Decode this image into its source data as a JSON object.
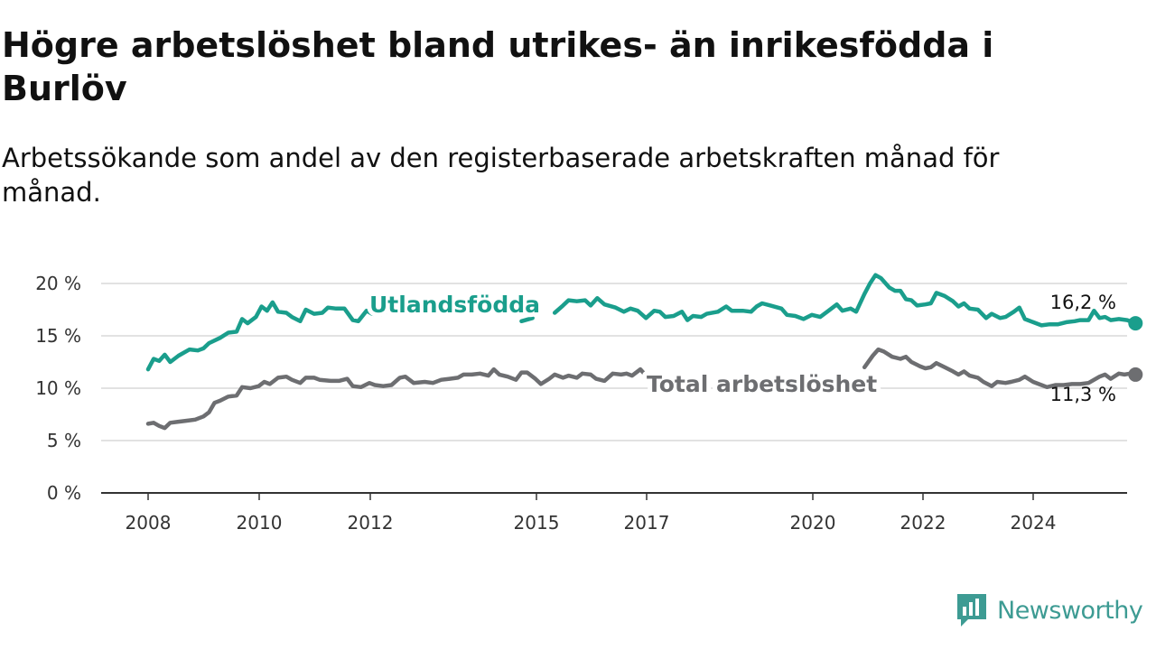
{
  "header": {
    "title": "Högre arbetslöshet bland utrikes- än inrikesfödda i Burlöv",
    "subtitle": "Arbetssökande som andel av den registerbaserade arbetskraften månad för månad."
  },
  "logo": {
    "text": "Newsworthy",
    "icon": "newsworthy-chart-icon"
  },
  "chart_data": {
    "type": "line",
    "title": "Högre arbetslöshet bland utrikes- än inrikesfödda i Burlöv",
    "subtitle": "Arbetssökande som andel av den registerbaserade arbetskraften månad för månad.",
    "xlabel": "",
    "ylabel": "",
    "xlim": [
      2008.0,
      2025.5
    ],
    "ylim": [
      0,
      20
    ],
    "yticks": [
      0,
      5,
      10,
      15,
      20
    ],
    "ytick_labels": [
      "0 %",
      "5 %",
      "10 %",
      "15 %",
      "20 %"
    ],
    "xticks": [
      2008,
      2010,
      2012,
      2015,
      2017,
      2020,
      2022,
      2024
    ],
    "xtick_labels": [
      "2008",
      "2010",
      "2012",
      "2015",
      "2017",
      "2020",
      "2022",
      "2024"
    ],
    "grid": true,
    "series": [
      {
        "name": "Utlandsfödda",
        "color": "#1a9e8c",
        "end_label": "16,2 %",
        "points": [
          [
            2008.0,
            11.8
          ],
          [
            2008.1,
            12.8
          ],
          [
            2008.2,
            12.6
          ],
          [
            2008.3,
            13.2
          ],
          [
            2008.4,
            12.5
          ],
          [
            2008.55,
            13.1
          ],
          [
            2008.75,
            13.7
          ],
          [
            2008.9,
            13.6
          ],
          [
            2009.0,
            13.8
          ],
          [
            2009.1,
            14.3
          ],
          [
            2009.3,
            14.8
          ],
          [
            2009.45,
            15.3
          ],
          [
            2009.6,
            15.4
          ],
          [
            2009.7,
            16.6
          ],
          [
            2009.8,
            16.2
          ],
          [
            2009.95,
            16.8
          ],
          [
            2010.05,
            17.8
          ],
          [
            2010.15,
            17.4
          ],
          [
            2010.25,
            18.2
          ],
          [
            2010.35,
            17.3
          ],
          [
            2010.5,
            17.2
          ],
          [
            2010.6,
            16.8
          ],
          [
            2010.75,
            16.4
          ],
          [
            2010.85,
            17.5
          ],
          [
            2011.0,
            17.1
          ],
          [
            2011.15,
            17.2
          ],
          [
            2011.25,
            17.7
          ],
          [
            2011.4,
            17.6
          ],
          [
            2011.55,
            17.6
          ],
          [
            2011.7,
            16.5
          ],
          [
            2011.8,
            16.4
          ],
          [
            2011.95,
            17.4
          ],
          [
            2012.05,
            17.1
          ],
          [
            2012.2,
            17.0
          ],
          [
            2012.3,
            17.3
          ],
          [
            2012.4,
            17.2
          ],
          [
            2012.48,
            18.1
          ]
        ],
        "extra_segments": [
          [
            [
              2014.75,
              16.4
            ],
            [
              2014.95,
              16.7
            ]
          ],
          [
            [
              2015.35,
              17.2
            ],
            [
              2015.5,
              17.9
            ],
            [
              2015.6,
              18.4
            ],
            [
              2015.75,
              18.3
            ],
            [
              2015.9,
              18.4
            ],
            [
              2016.0,
              17.9
            ],
            [
              2016.12,
              18.6
            ],
            [
              2016.25,
              18.0
            ],
            [
              2016.45,
              17.7
            ],
            [
              2016.6,
              17.3
            ],
            [
              2016.72,
              17.6
            ],
            [
              2016.85,
              17.4
            ],
            [
              2017.0,
              16.7
            ],
            [
              2017.15,
              17.4
            ],
            [
              2017.25,
              17.3
            ],
            [
              2017.35,
              16.8
            ],
            [
              2017.5,
              16.9
            ],
            [
              2017.65,
              17.3
            ],
            [
              2017.75,
              16.5
            ],
            [
              2017.85,
              16.9
            ],
            [
              2018.0,
              16.8
            ],
            [
              2018.1,
              17.1
            ],
            [
              2018.3,
              17.3
            ],
            [
              2018.45,
              17.8
            ],
            [
              2018.55,
              17.4
            ],
            [
              2018.75,
              17.4
            ],
            [
              2018.9,
              17.3
            ],
            [
              2019.0,
              17.8
            ],
            [
              2019.1,
              18.1
            ],
            [
              2019.25,
              17.9
            ],
            [
              2019.45,
              17.6
            ],
            [
              2019.55,
              17.0
            ],
            [
              2019.7,
              16.9
            ],
            [
              2019.85,
              16.6
            ],
            [
              2020.0,
              17.0
            ],
            [
              2020.15,
              16.8
            ],
            [
              2020.3,
              17.4
            ],
            [
              2020.45,
              18.0
            ],
            [
              2020.55,
              17.4
            ],
            [
              2020.7,
              17.6
            ],
            [
              2020.8,
              17.3
            ],
            [
              2020.95,
              19.0
            ],
            [
              2021.05,
              20.0
            ],
            [
              2021.15,
              20.8
            ],
            [
              2021.25,
              20.5
            ],
            [
              2021.4,
              19.6
            ],
            [
              2021.5,
              19.3
            ],
            [
              2021.6,
              19.3
            ],
            [
              2021.7,
              18.5
            ],
            [
              2021.8,
              18.4
            ],
            [
              2021.9,
              17.9
            ],
            [
              2022.05,
              18.0
            ],
            [
              2022.15,
              18.1
            ],
            [
              2022.25,
              19.1
            ],
            [
              2022.4,
              18.8
            ],
            [
              2022.55,
              18.3
            ],
            [
              2022.65,
              17.8
            ],
            [
              2022.75,
              18.1
            ],
            [
              2022.85,
              17.6
            ],
            [
              2023.0,
              17.5
            ],
            [
              2023.15,
              16.7
            ],
            [
              2023.25,
              17.1
            ],
            [
              2023.4,
              16.7
            ],
            [
              2023.5,
              16.8
            ],
            [
              2023.65,
              17.3
            ],
            [
              2023.75,
              17.7
            ],
            [
              2023.85,
              16.6
            ],
            [
              2024.0,
              16.3
            ],
            [
              2024.15,
              16.0
            ],
            [
              2024.3,
              16.1
            ],
            [
              2024.45,
              16.1
            ],
            [
              2024.6,
              16.3
            ],
            [
              2024.75,
              16.4
            ],
            [
              2024.85,
              16.5
            ],
            [
              2025.0,
              16.5
            ],
            [
              2025.1,
              17.4
            ],
            [
              2025.2,
              16.7
            ],
            [
              2025.3,
              16.8
            ],
            [
              2025.4,
              16.5
            ],
            [
              2025.55,
              16.6
            ],
            [
              2025.7,
              16.5
            ],
            [
              2025.85,
              16.2
            ]
          ]
        ]
      },
      {
        "name": "Total arbetslöshet",
        "color": "#6d6e71",
        "end_label": "11,3 %",
        "points": [
          [
            2008.0,
            6.6
          ],
          [
            2008.1,
            6.7
          ],
          [
            2008.2,
            6.4
          ],
          [
            2008.3,
            6.2
          ],
          [
            2008.4,
            6.7
          ],
          [
            2008.55,
            6.8
          ],
          [
            2008.7,
            6.9
          ],
          [
            2008.85,
            7.0
          ],
          [
            2009.0,
            7.3
          ],
          [
            2009.1,
            7.7
          ],
          [
            2009.2,
            8.6
          ],
          [
            2009.3,
            8.8
          ],
          [
            2009.45,
            9.2
          ],
          [
            2009.6,
            9.3
          ],
          [
            2009.7,
            10.1
          ],
          [
            2009.85,
            10.0
          ],
          [
            2010.0,
            10.2
          ],
          [
            2010.1,
            10.6
          ],
          [
            2010.2,
            10.4
          ],
          [
            2010.35,
            11.0
          ],
          [
            2010.5,
            11.1
          ],
          [
            2010.6,
            10.8
          ],
          [
            2010.75,
            10.5
          ],
          [
            2010.85,
            11.0
          ],
          [
            2011.0,
            11.0
          ],
          [
            2011.1,
            10.8
          ],
          [
            2011.3,
            10.7
          ],
          [
            2011.45,
            10.7
          ],
          [
            2011.6,
            10.9
          ],
          [
            2011.7,
            10.2
          ],
          [
            2011.85,
            10.1
          ],
          [
            2012.0,
            10.5
          ],
          [
            2012.1,
            10.3
          ],
          [
            2012.25,
            10.2
          ],
          [
            2012.4,
            10.3
          ],
          [
            2012.55,
            11.0
          ],
          [
            2012.65,
            11.1
          ],
          [
            2012.8,
            10.5
          ],
          [
            2013.0,
            10.6
          ],
          [
            2013.15,
            10.5
          ],
          [
            2013.3,
            10.8
          ],
          [
            2013.45,
            10.9
          ],
          [
            2013.6,
            11.0
          ],
          [
            2013.7,
            11.3
          ],
          [
            2013.85,
            11.3
          ],
          [
            2014.0,
            11.4
          ],
          [
            2014.15,
            11.2
          ],
          [
            2014.25,
            11.8
          ],
          [
            2014.35,
            11.3
          ],
          [
            2014.5,
            11.1
          ],
          [
            2014.65,
            10.8
          ],
          [
            2014.75,
            11.5
          ],
          [
            2014.85,
            11.5
          ],
          [
            2015.0,
            10.9
          ],
          [
            2015.1,
            10.4
          ],
          [
            2015.25,
            10.9
          ],
          [
            2015.35,
            11.3
          ],
          [
            2015.5,
            11.0
          ],
          [
            2015.6,
            11.2
          ],
          [
            2015.75,
            11.0
          ],
          [
            2015.85,
            11.4
          ],
          [
            2016.0,
            11.3
          ],
          [
            2016.1,
            10.9
          ],
          [
            2016.25,
            10.7
          ],
          [
            2016.4,
            11.4
          ],
          [
            2016.55,
            11.3
          ],
          [
            2016.65,
            11.4
          ],
          [
            2016.75,
            11.2
          ],
          [
            2016.9,
            11.8
          ],
          [
            2017.0,
            11.2
          ],
          [
            2017.15,
            10.9
          ],
          [
            2017.3,
            10.6
          ],
          [
            2017.45,
            10.8
          ],
          [
            2017.55,
            10.6
          ],
          [
            2017.7,
            10.1
          ],
          [
            2017.8,
            10.1
          ],
          [
            2018.0,
            10.2
          ]
        ],
        "extra_segments": [
          [
            [
              2019.4,
              10.4
            ],
            [
              2019.5,
              10.4
            ]
          ],
          [
            [
              2020.95,
              12.0
            ],
            [
              2021.1,
              13.1
            ],
            [
              2021.2,
              13.7
            ],
            [
              2021.3,
              13.5
            ],
            [
              2021.45,
              13.0
            ],
            [
              2021.6,
              12.8
            ],
            [
              2021.7,
              13.0
            ],
            [
              2021.8,
              12.5
            ],
            [
              2021.95,
              12.1
            ],
            [
              2022.05,
              11.9
            ],
            [
              2022.15,
              12.0
            ],
            [
              2022.25,
              12.4
            ],
            [
              2022.4,
              12.0
            ],
            [
              2022.55,
              11.6
            ],
            [
              2022.65,
              11.3
            ],
            [
              2022.75,
              11.6
            ],
            [
              2022.85,
              11.2
            ],
            [
              2023.0,
              11.0
            ],
            [
              2023.1,
              10.6
            ],
            [
              2023.25,
              10.2
            ],
            [
              2023.35,
              10.6
            ],
            [
              2023.5,
              10.5
            ],
            [
              2023.6,
              10.6
            ],
            [
              2023.75,
              10.8
            ],
            [
              2023.85,
              11.1
            ],
            [
              2024.0,
              10.6
            ],
            [
              2024.15,
              10.3
            ],
            [
              2024.25,
              10.1
            ],
            [
              2024.4,
              10.3
            ],
            [
              2024.55,
              10.3
            ],
            [
              2024.7,
              10.4
            ],
            [
              2024.85,
              10.4
            ],
            [
              2025.0,
              10.5
            ],
            [
              2025.1,
              10.8
            ],
            [
              2025.2,
              11.1
            ],
            [
              2025.3,
              11.3
            ],
            [
              2025.4,
              10.9
            ],
            [
              2025.55,
              11.4
            ],
            [
              2025.65,
              11.3
            ],
            [
              2025.75,
              11.4
            ],
            [
              2025.85,
              11.3
            ]
          ]
        ]
      }
    ],
    "series_labels": [
      {
        "text": "Utlandsfödda",
        "color": "#1a9e8c"
      },
      {
        "text": "Total arbetslöshet",
        "color": "#6d6e71"
      }
    ]
  }
}
